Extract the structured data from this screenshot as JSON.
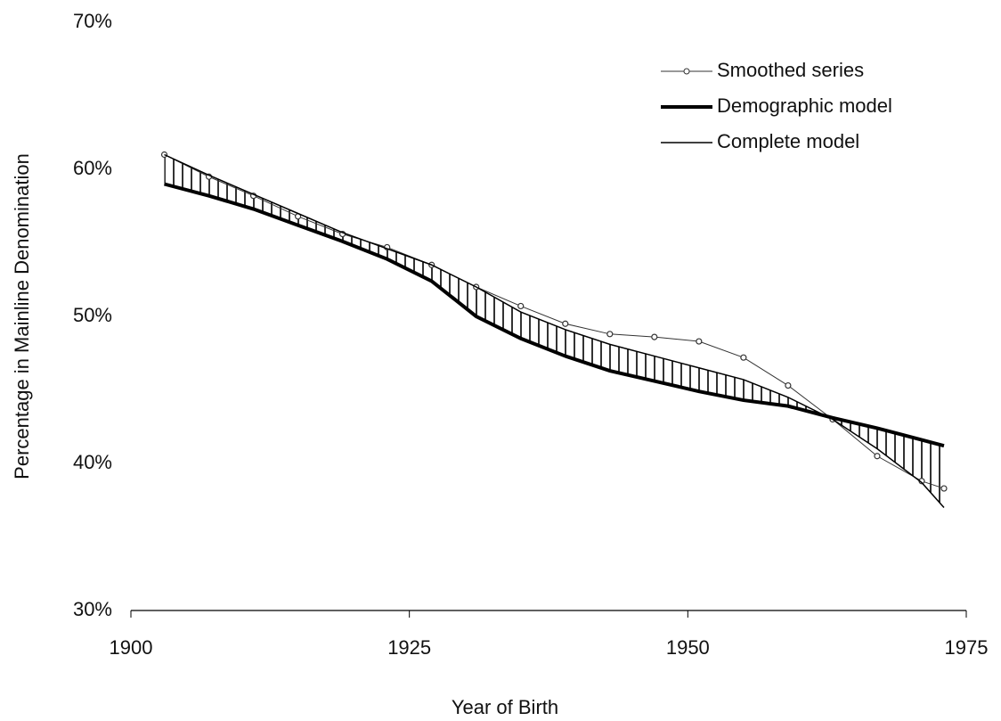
{
  "chart_data": {
    "type": "line",
    "x_label": "Year of Birth",
    "y_label": "Percentage in Mainline Denomination",
    "x": [
      1903,
      1907,
      1911,
      1915,
      1919,
      1923,
      1927,
      1931,
      1935,
      1939,
      1943,
      1947,
      1951,
      1955,
      1959,
      1963,
      1967,
      1971,
      1973
    ],
    "series": [
      {
        "name": "Smoothed series",
        "color": "#333333",
        "width": 1,
        "markers": true,
        "values": [
          61.0,
          59.5,
          58.2,
          56.8,
          55.6,
          54.7,
          53.5,
          52.0,
          50.7,
          49.5,
          48.8,
          48.6,
          48.3,
          47.2,
          45.3,
          43.0,
          40.5,
          38.8,
          38.3
        ]
      },
      {
        "name": "Demographic model",
        "color": "#000000",
        "width": 4,
        "markers": false,
        "values": [
          59.0,
          58.2,
          57.3,
          56.2,
          55.1,
          53.9,
          52.4,
          50.0,
          48.5,
          47.3,
          46.3,
          45.6,
          44.9,
          44.3,
          43.9,
          43.1,
          42.4,
          41.6,
          41.2
        ]
      },
      {
        "name": "Complete model",
        "color": "#000000",
        "width": 1.5,
        "markers": false,
        "values": [
          61.0,
          59.6,
          58.3,
          57.0,
          55.7,
          54.6,
          53.5,
          52.0,
          50.3,
          49.1,
          48.1,
          47.3,
          46.5,
          45.7,
          44.5,
          43.0,
          41.0,
          38.7,
          37.0
        ]
      }
    ],
    "xlim": [
      1900,
      1975
    ],
    "xticks": [
      1900,
      1925,
      1950,
      1975
    ],
    "ylim": [
      30,
      70
    ],
    "yticks": [
      {
        "value": 30,
        "label": "30%"
      },
      {
        "value": 40,
        "label": "40%"
      },
      {
        "value": 50,
        "label": "50%"
      },
      {
        "value": 60,
        "label": "60%"
      },
      {
        "value": 70,
        "label": "70%"
      }
    ],
    "legend": "upper-right",
    "grid": false
  }
}
